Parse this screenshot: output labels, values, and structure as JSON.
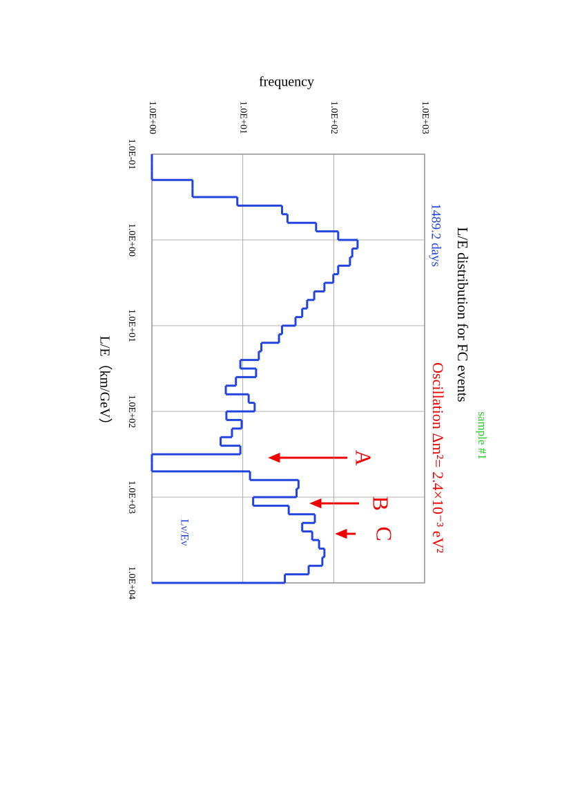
{
  "chart_data": {
    "type": "histogram",
    "title": "L/E distribution for FC events",
    "subtitle": "1489.2 days",
    "x_label": "L/E（km/GeV）",
    "y_label": "frequency",
    "annotations": [
      "Oscillation Δm²= 2.4×10⁻³ eV²",
      "sample #1",
      "A",
      "B",
      "C",
      "Lν/Eν"
    ],
    "series": [
      {
        "name": "Lν/Eν",
        "color": "#2244dd",
        "bins": [
          0.1,
          0.1259,
          0.1585,
          0.1995,
          0.2512,
          0.3162,
          0.3981,
          0.5012,
          0.631,
          0.7943,
          1,
          1.259,
          1.585,
          1.995,
          2.512,
          3.162,
          3.981,
          5.012,
          6.31,
          7.943,
          10,
          12.59,
          15.85,
          19.95,
          25.12,
          31.62,
          39.81,
          50.12,
          63.1,
          79.43,
          100,
          125.9,
          158.5,
          199.5,
          251.2,
          316.2,
          398.1,
          501.2,
          631,
          794.3,
          1000,
          1259,
          1585,
          1995,
          2512,
          3162,
          3981,
          5012,
          6310,
          7943,
          10000
        ],
        "values": [
          1,
          1,
          1,
          2.8,
          2.8,
          8.7,
          27,
          31,
          64,
          112,
          183,
          160,
          151,
          112,
          99,
          79,
          61,
          51,
          45,
          38,
          27,
          25,
          16,
          15,
          9.4,
          14,
          8.4,
          6.5,
          11.6,
          13.5,
          6.6,
          9.7,
          7.6,
          5.7,
          9.4,
          1,
          1,
          12,
          41,
          39,
          13,
          32,
          62,
          45,
          58,
          69,
          79,
          75,
          53,
          29
        ]
      }
    ],
    "xlim": [
      0.1,
      10000
    ],
    "ylim": [
      1,
      1000
    ],
    "xlog": true,
    "ylog": true,
    "grid": true,
    "xticks": [
      {
        "value": 0.1,
        "label": "1.0E-01"
      },
      {
        "value": 1,
        "label": "1.0E+00"
      },
      {
        "value": 10,
        "label": "1.0E+01"
      },
      {
        "value": 100,
        "label": "1.0E+02"
      },
      {
        "value": 1000,
        "label": "1.0E+03"
      },
      {
        "value": 10000,
        "label": "1.0E+04"
      }
    ],
    "yticks": [
      {
        "value": 1,
        "label": "1.0E+00"
      },
      {
        "value": 10,
        "label": "1.0E+01"
      },
      {
        "value": 100,
        "label": "1.0E+02"
      },
      {
        "value": 1000,
        "label": "1.0E+03"
      }
    ]
  }
}
